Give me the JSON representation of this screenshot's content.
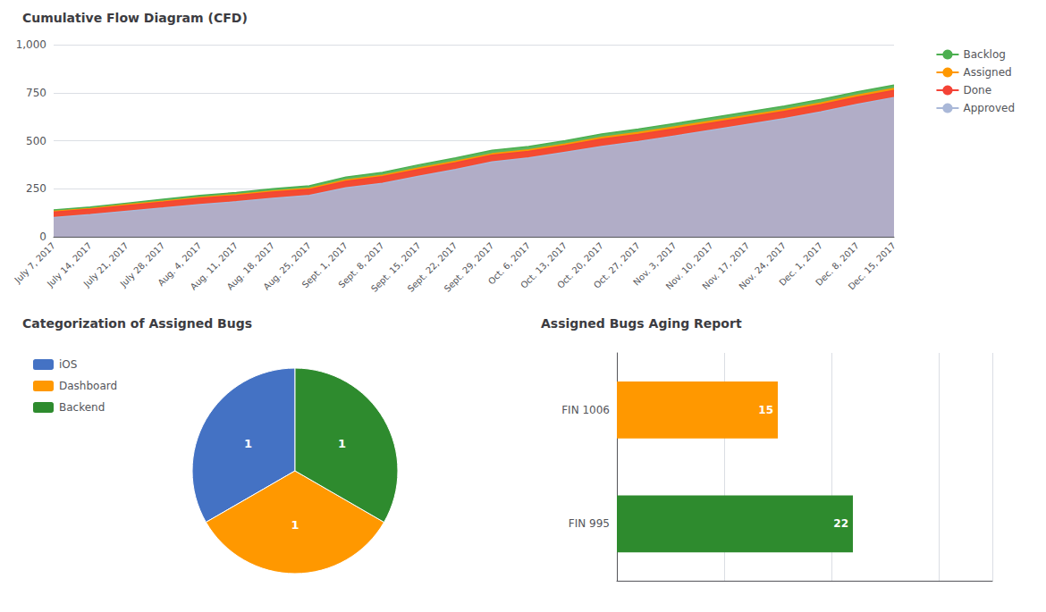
{
  "chart_data": [
    {
      "type": "area",
      "title": "Cumulative Flow Diagram (CFD)",
      "categories": [
        "July 7, 2017",
        "July 14, 2017",
        "July 21, 2017",
        "July 28, 2017",
        "Aug. 4, 2017",
        "Aug. 11, 2017",
        "Aug. 18, 2017",
        "Aug. 25, 2017",
        "Sept. 1, 2017",
        "Sept. 8, 2017",
        "Sept. 15, 2017",
        "Sept. 22, 2017",
        "Sept. 29, 2017",
        "Oct. 6, 2017",
        "Oct. 13, 2017",
        "Oct. 20, 2017",
        "Oct. 27, 2017",
        "Nov. 3, 2017",
        "Nov. 10, 2017",
        "Nov. 17, 2017",
        "Nov. 24, 2017",
        "Dec. 1, 2017",
        "Dec. 8, 2017",
        "Dec. 15, 2017"
      ],
      "series": [
        {
          "name": "Backlog",
          "color": "#4caf50",
          "values": [
            140,
            155,
            175,
            195,
            215,
            230,
            250,
            265,
            310,
            335,
            375,
            410,
            450,
            470,
            500,
            535,
            560,
            590,
            620,
            650,
            680,
            715,
            755,
            790
          ]
        },
        {
          "name": "Assigned",
          "color": "#ff9800",
          "values": [
            132,
            147,
            167,
            185,
            205,
            220,
            238,
            252,
            295,
            320,
            358,
            393,
            432,
            452,
            483,
            518,
            543,
            572,
            602,
            632,
            662,
            697,
            737,
            772
          ]
        },
        {
          "name": "Done",
          "color": "#f44336",
          "values": [
            128,
            143,
            162,
            180,
            200,
            214,
            232,
            246,
            288,
            313,
            350,
            385,
            424,
            444,
            474,
            508,
            533,
            562,
            592,
            622,
            652,
            687,
            727,
            762
          ]
        },
        {
          "name": "Approved",
          "color": "#aab8d8",
          "values": [
            100,
            115,
            133,
            150,
            168,
            182,
            200,
            215,
            255,
            278,
            315,
            350,
            390,
            410,
            440,
            470,
            495,
            525,
            555,
            585,
            615,
            650,
            690,
            725
          ]
        }
      ],
      "ylim": [
        0,
        1000
      ],
      "yticks": [
        0,
        250,
        500,
        750,
        {
          "value": 1000,
          "label": "1,000"
        }
      ],
      "grid": true,
      "legend": "right"
    },
    {
      "type": "pie",
      "title": "Categorization of Assigned Bugs",
      "categories": [
        "iOS",
        "Dashboard",
        "Backend"
      ],
      "values": [
        1,
        1,
        1
      ],
      "colors": [
        "#4472c4",
        "#ff9800",
        "#2e8b2e"
      ],
      "data_labels": true,
      "legend": "left"
    },
    {
      "type": "bar",
      "orientation": "horizontal",
      "title": "Assigned Bugs Aging Report",
      "categories": [
        "FIN 1006",
        "FIN 995"
      ],
      "values": [
        15,
        22
      ],
      "colors": [
        "#ff9800",
        "#2e8b2e"
      ],
      "xlim": [
        0,
        35
      ],
      "xticks": [
        0,
        10,
        20,
        30
      ],
      "grid": true,
      "data_labels": true,
      "tick_labels": "y"
    }
  ]
}
